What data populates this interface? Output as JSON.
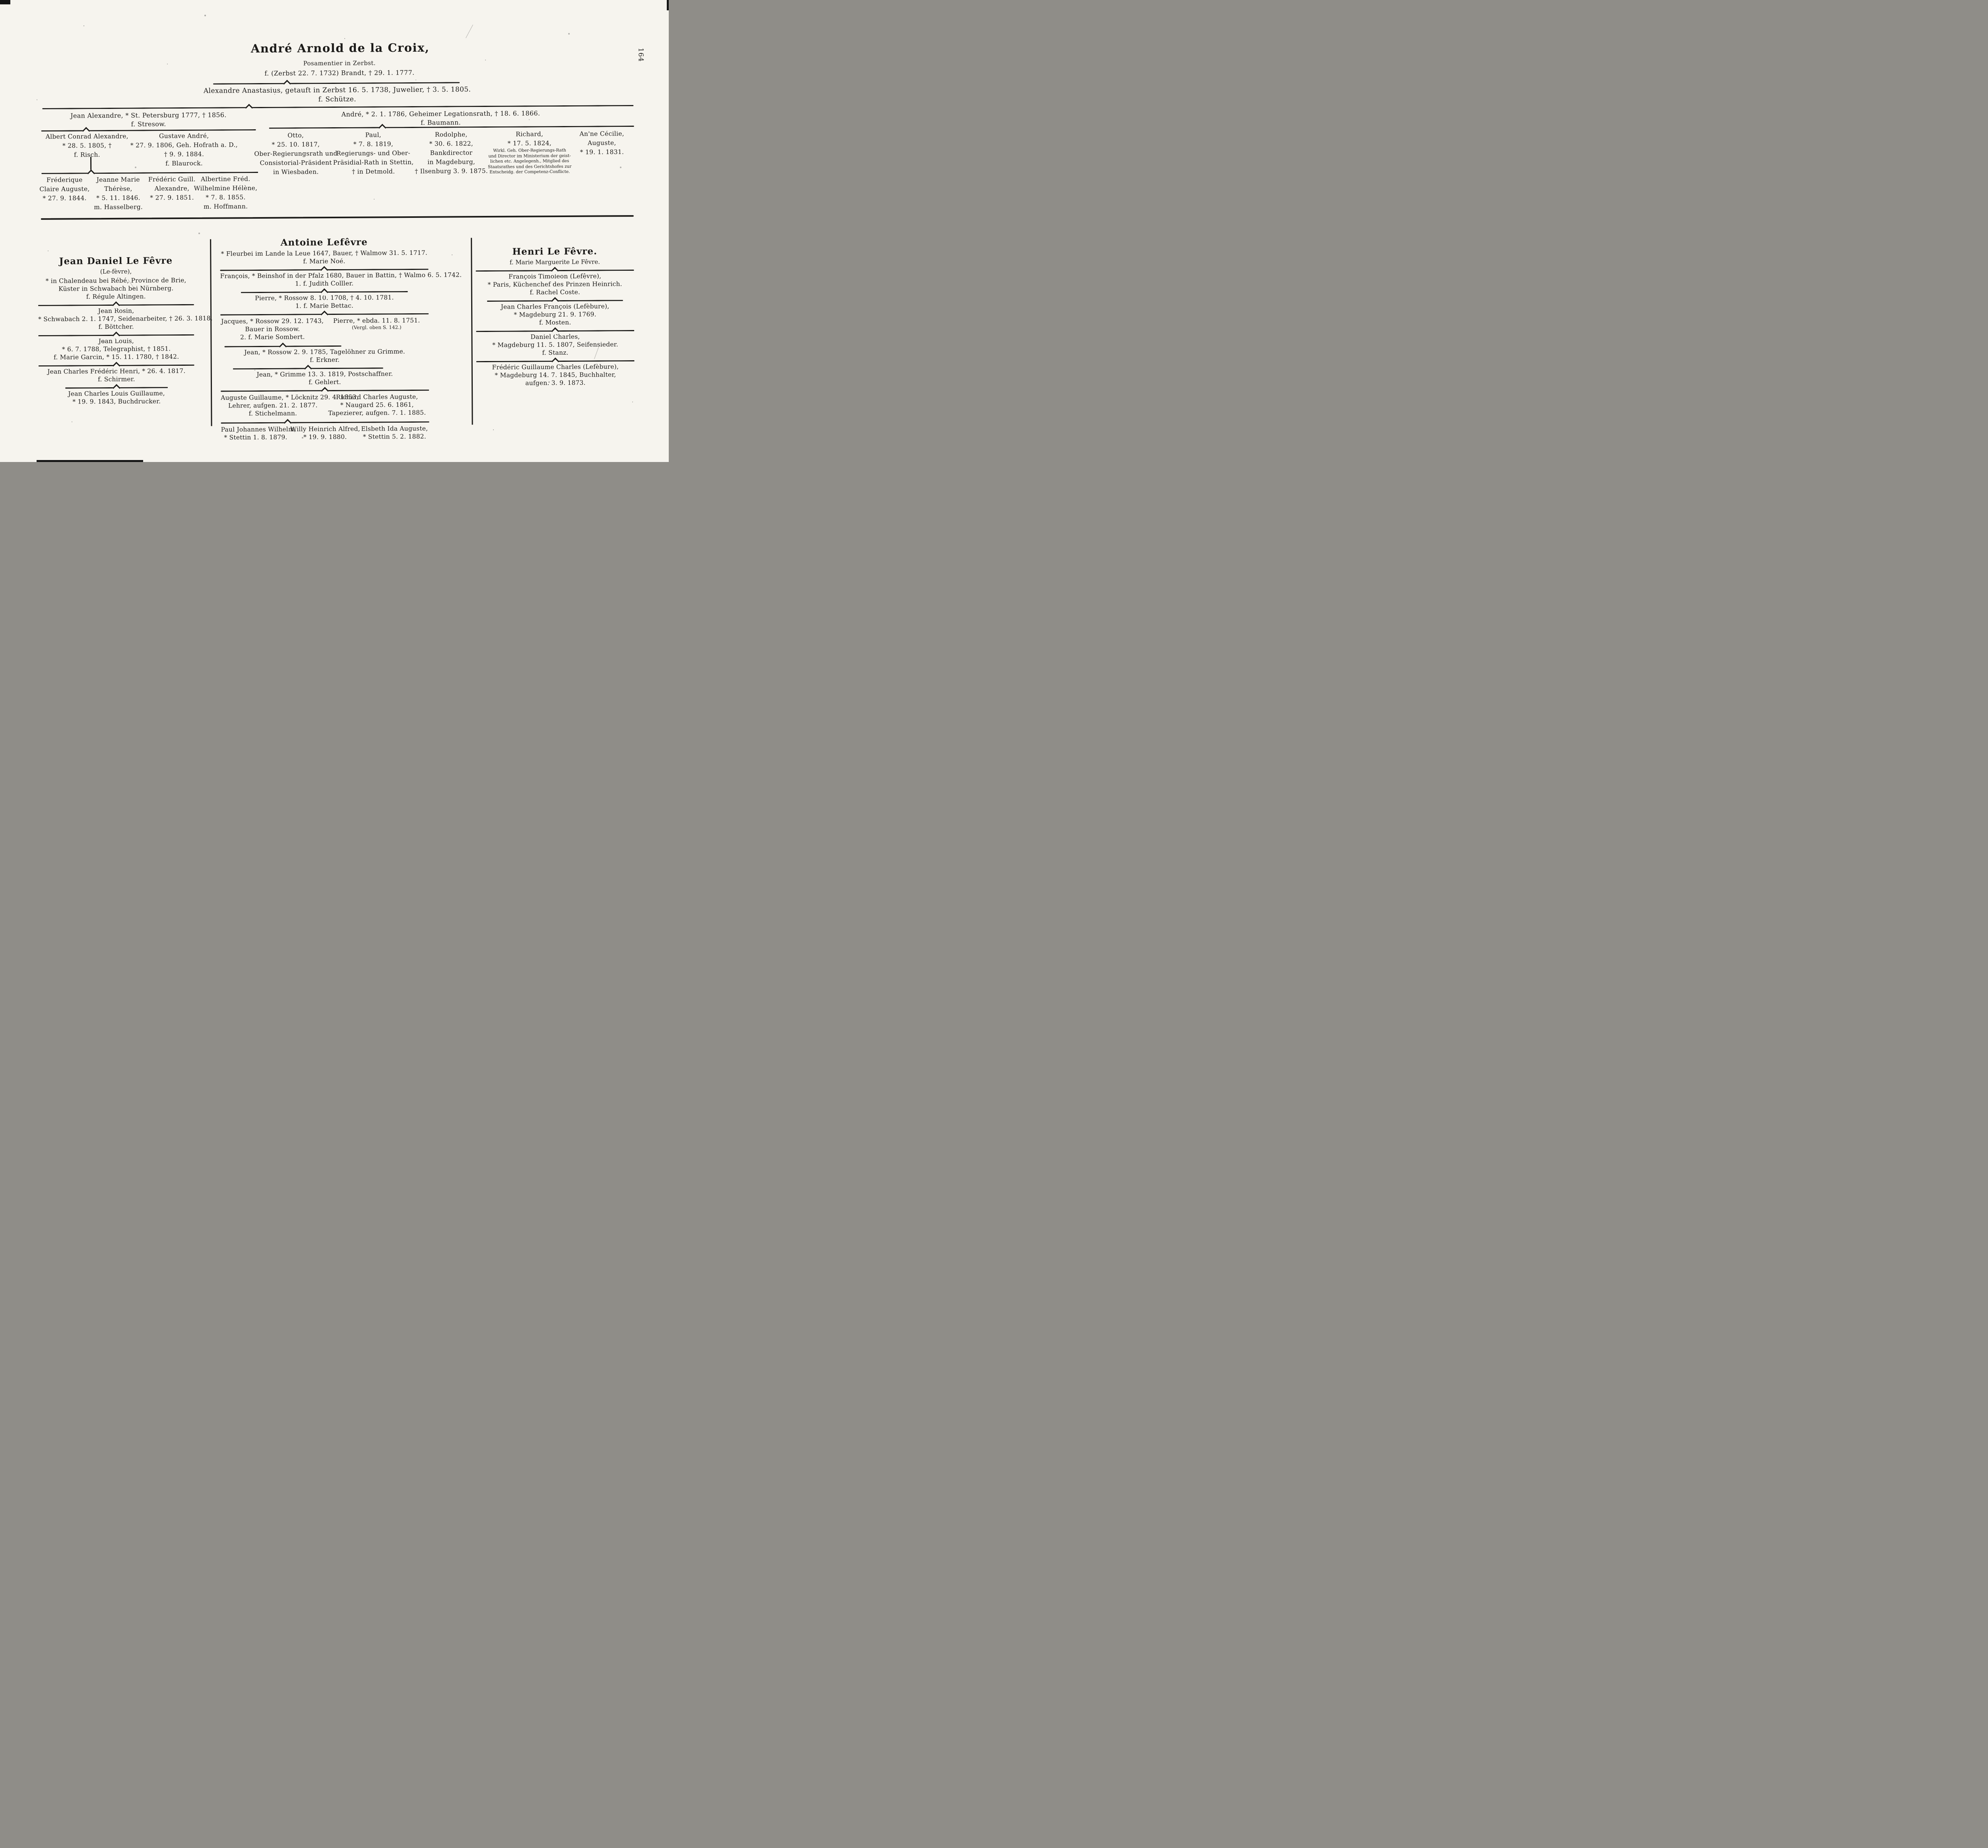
{
  "page_number": "164",
  "colors": {
    "ink": "#1c1b19",
    "paper": "#f6f4ee"
  },
  "top_tree": {
    "title": "André Arnold de la Croix,",
    "subtitle": "Posamentier in Zerbst.",
    "parent_line": "f. (Zerbst 22. 7. 1732) Brandt, † 29. 1. 1777.",
    "gen2": [
      "Alexandre Anastasius, getauft in Zerbst 16. 5. 1738, Juwelier, † 3. 5. 1805.",
      "f. Schütze."
    ],
    "gen3_left": [
      "Jean Alexandre, * St. Petersburg 1777, † 1856.",
      "f. Stresow."
    ],
    "gen3_right": [
      "André, * 2. 1. 1786, Geheimer Legationsrath, † 18. 6. 1866.",
      "f. Baumann."
    ],
    "gen4_albert": [
      "Albert Conrad Alexandre,",
      "* 28. 5. 1805, †",
      "f. Risch."
    ],
    "gen4_gustave": [
      "Gustave André,",
      "* 27. 9. 1806, Geh. Hofrath a. D.,",
      "† 9. 9. 1884.",
      "f. Blaurock."
    ],
    "gen4_otto": [
      "Otto,",
      "* 25. 10. 1817,",
      "Ober-Regierungsrath und",
      "Consistorial-Präsident",
      "in Wiesbaden."
    ],
    "gen4_paul": [
      "Paul,",
      "* 7. 8. 1819,",
      "Regierungs- und Ober-",
      "Präsidial-Rath in Stettin,",
      "† in Detmold."
    ],
    "gen4_rodolphe": [
      "Rodolphe,",
      "* 30. 6. 1822,",
      "Bankdirector",
      "in Magdeburg,",
      "† Ilsenburg 3. 9. 1875."
    ],
    "gen4_richard": [
      "Richard,",
      "* 17. 5. 1824,"
    ],
    "gen4_richard_small": [
      "Wirkl. Geh. Ober-Regierungs-Rath",
      "und Director im Ministerium der geist-",
      "lichen etc. Angelegenh., Mitglied des",
      "Staatsrathes und des Gerichtshofes zur",
      "Entscheidg. der Competenz-Conflicte."
    ],
    "gen4_anne": [
      "An'ne Cécilie,",
      "Auguste,",
      "* 19. 1. 1831."
    ],
    "gen5_frederique": [
      "Fréderique",
      "Claire Auguste,",
      "* 27. 9. 1844."
    ],
    "gen5_jeanne": [
      "Jeanne Marie",
      "Thérèse,",
      "* 5. 11. 1846.",
      "m. Hasselberg."
    ],
    "gen5_frederic": [
      "Frédéric Guill.",
      "Alexandre,",
      "* 27. 9. 1851."
    ],
    "gen5_albertine": [
      "Albertine Fréd.",
      "Wilhelmine Hélène,",
      "* 7. 8. 1855.",
      "m. Hoffmann."
    ]
  },
  "left_column": {
    "title": "Jean Daniel Le Fêvre",
    "subtitle": "(Le-fèvre),",
    "root_lines": [
      "* in Chalendeau bei Rébé, Province de Brie,",
      "Küster in Schwabach bei Nürnberg.",
      "f. Régule Altingen."
    ],
    "gen2": [
      "Jean Rosin,",
      "* Schwabach 2. 1. 1747, Seidenarbeiter, † 26. 3. 1818.",
      "f. Böttcher."
    ],
    "gen3": [
      "Jean Louis,",
      "* 6. 7. 1788, Telegraphist, † 1851.",
      "f. Marie Garcin, * 15. 11. 1780, † 1842."
    ],
    "gen4": [
      "Jean Charles Frédéric Henri, * 26. 4. 1817.",
      "f. Schirmer."
    ],
    "gen5": [
      "Jean Charles Louis Guillaume,",
      "* 19. 9. 1843, Buchdrucker."
    ]
  },
  "middle_column": {
    "title": "Antoine Lefêvre",
    "root_lines": [
      "* Fleurbei im Lande la Leue 1647, Bauer, † Walmow 31. 5. 1717.",
      "f. Marie Noé."
    ],
    "gen2": [
      "François, * Beinshof in der Pfalz 1680, Bauer in Battin, † Walmo 6. 5. 1742.",
      "1. f. Judith Colller."
    ],
    "gen3": [
      "Pierre, * Rossow 8. 10. 1708, † 4. 10. 1781.",
      "1. f. Marie Bettac."
    ],
    "gen4_left": [
      "Jacques, * Rossow 29. 12. 1743,",
      "Bauer in Rossow.",
      "2. f. Marie Sombert."
    ],
    "gen4_right": [
      "Pierre, * ebda. 11. 8. 1751."
    ],
    "gen4_right_note": "(Vergl. oben S. 142.)",
    "gen5": [
      "Jean, * Rossow 2. 9. 1785, Tagelöhner zu Grimme.",
      "f. Erkner."
    ],
    "gen6": [
      "Jean, * Grimme 13. 3. 1819, Postschaffner.",
      "f. Gehlert."
    ],
    "gen7_left": [
      "Auguste Guillaume, * Löcknitz 29. 4. 1853,",
      "Lehrer, aufgen. 21. 2. 1877.",
      "f. Stichelmann."
    ],
    "gen7_right": [
      "Richard Charles Auguste,",
      "* Naugard 25. 6. 1861,",
      "Tapezierer, aufgen. 7. 1. 1885."
    ],
    "gen8_a": [
      "Paul Johannes Wilhelm,",
      "* Stettin 1. 8. 1879."
    ],
    "gen8_b": [
      "Willy Heinrich Alfred,",
      "* 19. 9. 1880."
    ],
    "gen8_c": [
      "Elsbeth Ida Auguste,",
      "* Stettin 5. 2. 1882."
    ]
  },
  "right_column": {
    "title": "Henri Le Fêvre.",
    "subtitle": "f. Marie Marguerite Le Fêvre.",
    "gen2": [
      "François Timoleon (Lefêvre),",
      "* Paris, Küchenchef des Prinzen Heinrich.",
      "f. Rachel Coste."
    ],
    "gen3": [
      "Jean Charles François (Lefèbure),",
      "* Magdeburg 21. 9. 1769.",
      "f. Mosten."
    ],
    "gen4": [
      "Daniel Charles,",
      "* Magdeburg 11. 5. 1807, Seifensieder.",
      "f. Stanz."
    ],
    "gen5": [
      "Frédéric Guillaume Charles (Lefèbure),",
      "* Magdeburg 14. 7. 1845, Buchhalter,",
      "aufgen. 3. 9. 1873."
    ]
  }
}
